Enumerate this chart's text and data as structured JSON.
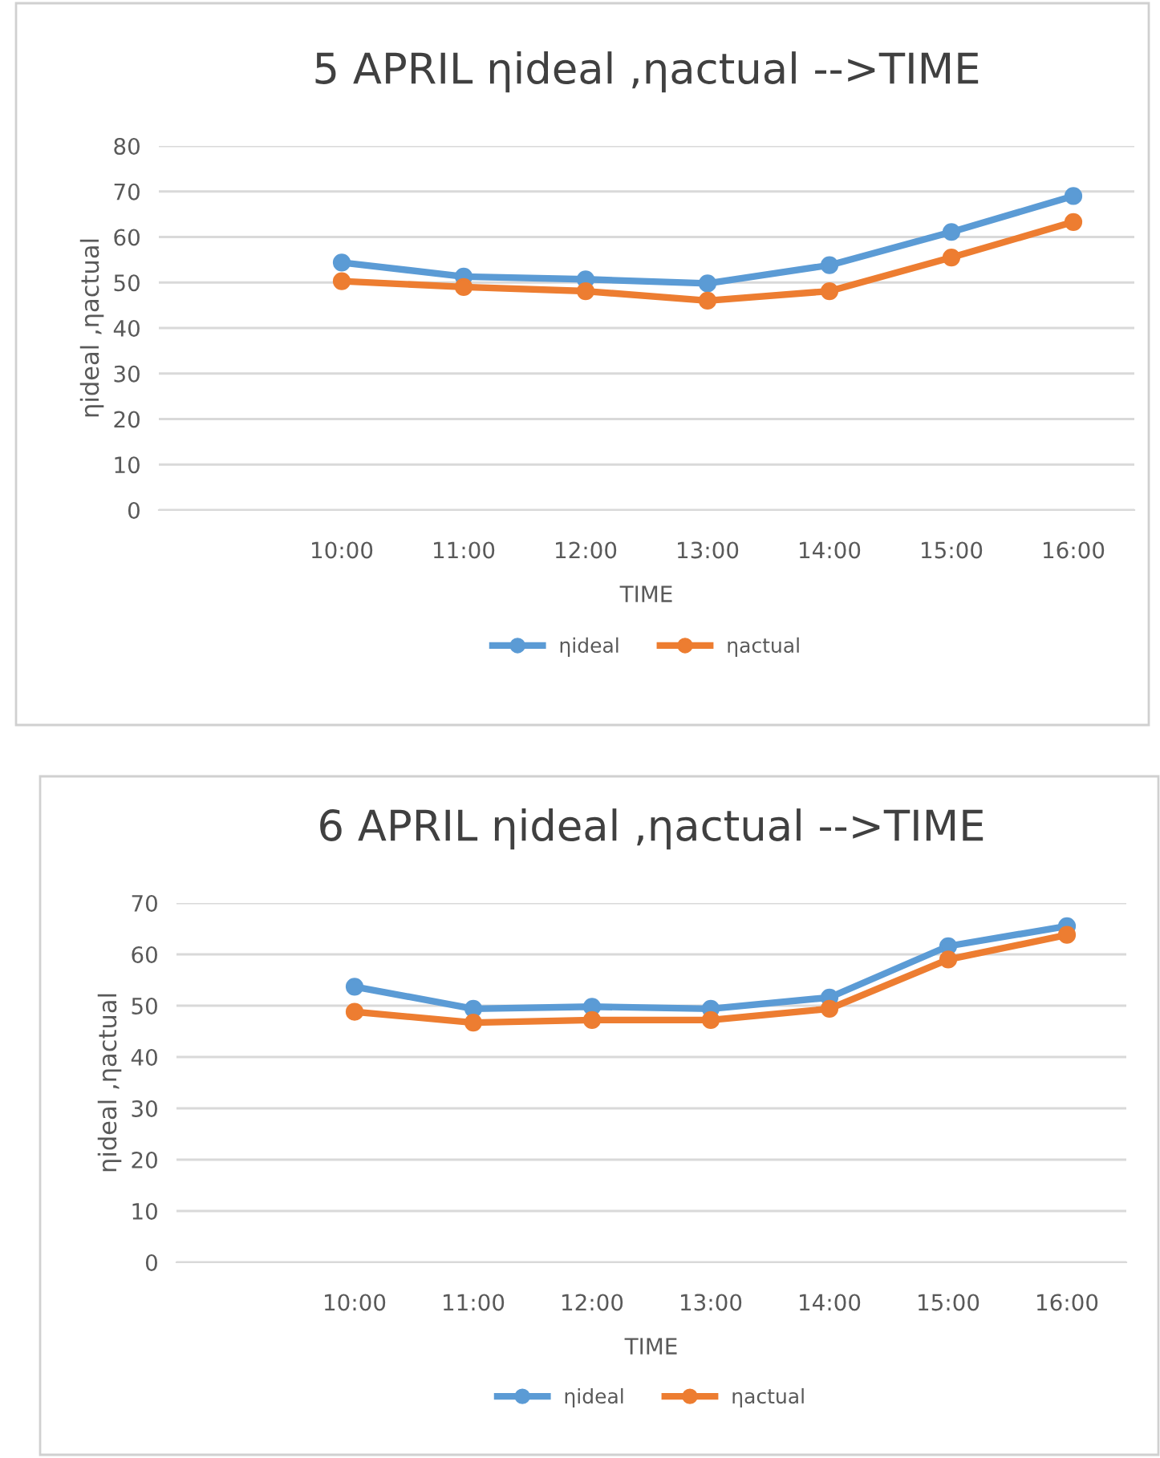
{
  "chart_data": [
    {
      "type": "line",
      "title": "5 APRIL ηideal ,ηactual -->TIME",
      "xlabel": "TIME",
      "ylabel": "ηideal ,ηactual",
      "categories": [
        null,
        "10:00",
        "11:00",
        "12:00",
        "13:00",
        "14:00",
        "15:00",
        "16:00"
      ],
      "series": [
        {
          "name": "ηideal",
          "color": "#5b9bd5",
          "values": [
            null,
            54.4,
            51.3,
            50.7,
            49.8,
            53.8,
            61.1,
            69.0
          ]
        },
        {
          "name": "ηactual",
          "color": "#ed7d31",
          "values": [
            null,
            50.3,
            49.0,
            48.1,
            46.0,
            48.1,
            55.5,
            63.3
          ]
        }
      ],
      "ylim": [
        0,
        80
      ],
      "yticks": [
        0,
        10,
        20,
        30,
        40,
        50,
        60,
        70,
        80
      ],
      "grid": "y",
      "legend": "bottom",
      "marker": "circle",
      "line_style": "solid"
    },
    {
      "type": "line",
      "title": "6 APRIL ηideal ,ηactual -->TIME",
      "xlabel": "TIME",
      "ylabel": "ηideal ,ηactual",
      "categories": [
        null,
        "10:00",
        "11:00",
        "12:00",
        "13:00",
        "14:00",
        "15:00",
        "16:00"
      ],
      "series": [
        {
          "name": "ηideal",
          "color": "#5b9bd5",
          "values": [
            null,
            53.7,
            49.4,
            49.8,
            49.4,
            51.6,
            61.6,
            65.5
          ]
        },
        {
          "name": "ηactual",
          "color": "#ed7d31",
          "values": [
            null,
            48.8,
            46.7,
            47.2,
            47.2,
            49.4,
            59.0,
            63.8
          ]
        }
      ],
      "ylim": [
        0,
        70
      ],
      "yticks": [
        0,
        10,
        20,
        30,
        40,
        50,
        60,
        70
      ],
      "grid": "y",
      "legend": "bottom",
      "marker": "circle",
      "line_style": "solid"
    }
  ]
}
